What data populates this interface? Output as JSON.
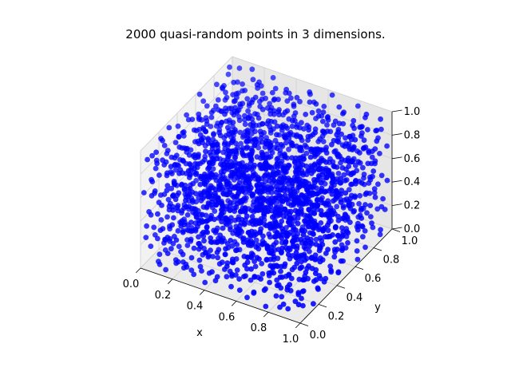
{
  "chart_data": {
    "type": "scatter",
    "title": "2000 quasi-random points in 3 dimensions.",
    "xlabel": "x",
    "ylabel": "y",
    "zlabel": "",
    "xlim": [
      0.0,
      1.0
    ],
    "ylim": [
      0.0,
      1.0
    ],
    "zlim": [
      0.0,
      1.0
    ],
    "x_ticks": [
      "0.0",
      "0.2",
      "0.4",
      "0.6",
      "0.8",
      "1.0"
    ],
    "y_ticks": [
      "0.0",
      "0.2",
      "0.4",
      "0.6",
      "0.8",
      "1.0"
    ],
    "z_ticks": [
      "0.0",
      "0.2",
      "0.4",
      "0.6",
      "0.8",
      "1.0"
    ],
    "grid": true,
    "point_count": 2000,
    "point_color": "#0000ff",
    "points_note": "Quasi-random (Halton) points filling the unit cube; individual coordinates are not labeled."
  },
  "colors": {
    "pane_left": "#f2f2f2",
    "pane_right": "#e6e6e6",
    "pane_floor": "#ebebeb",
    "grid": "#d0d0d0",
    "axis": "#000000",
    "marker": "#0000ff"
  }
}
